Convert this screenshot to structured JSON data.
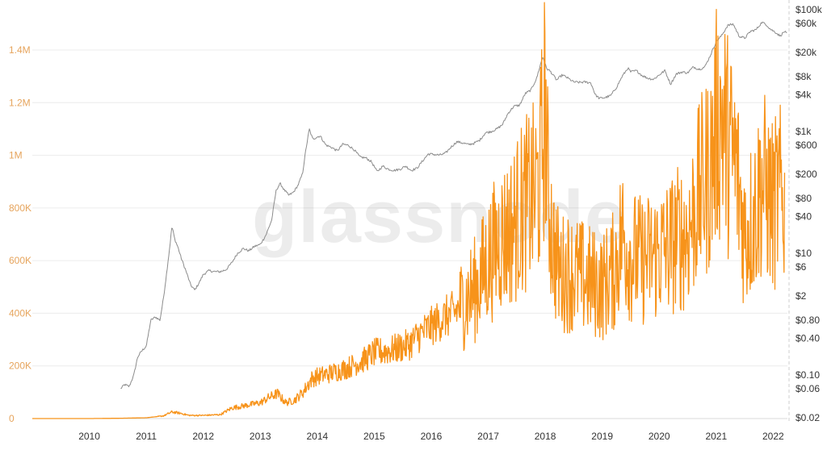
{
  "watermark": "glassnode",
  "chart_data": {
    "type": "line",
    "title": "",
    "xlabel": "",
    "ylabel": "",
    "xlim": [
      2009.0,
      2022.25
    ],
    "x_ticks": [
      "2010",
      "2011",
      "2012",
      "2013",
      "2014",
      "2015",
      "2016",
      "2017",
      "2018",
      "2019",
      "2020",
      "2021",
      "2022"
    ],
    "left_axis": {
      "scale": "linear",
      "ylim": [
        0,
        1500000
      ],
      "tick_labels": [
        "0",
        "200K",
        "400K",
        "600K",
        "800K",
        "1M",
        "1.2M",
        "1.4M"
      ],
      "tick_values": [
        0,
        200000,
        400000,
        600000,
        800000,
        1000000,
        1200000,
        1400000
      ]
    },
    "right_axis": {
      "scale": "log",
      "ylim": [
        0.015,
        120000
      ],
      "tick_labels": [
        "$0.02",
        "$0.06",
        "$0.10",
        "$0.40",
        "$0.80",
        "$2",
        "$6",
        "$10",
        "$40",
        "$80",
        "$200",
        "$600",
        "$1k",
        "$4k",
        "$8k",
        "$20k",
        "$60k",
        "$100k"
      ],
      "tick_values": [
        0.02,
        0.06,
        0.1,
        0.4,
        0.8,
        2,
        6,
        10,
        40,
        80,
        200,
        600,
        1000,
        4000,
        8000,
        20000,
        60000,
        100000
      ]
    },
    "grid": true,
    "legend": "none",
    "colors": {
      "series_orange": "#f7931a",
      "series_price": "#8c8c8c",
      "left_tick_text": "#e6a45c",
      "grid": "#ececec"
    },
    "series": [
      {
        "axis": "right",
        "color": "#8c8c8c",
        "x": [
          2010.55,
          2010.62,
          2010.7,
          2010.78,
          2010.85,
          2010.92,
          2011.0,
          2011.08,
          2011.16,
          2011.24,
          2011.3,
          2011.36,
          2011.42,
          2011.45,
          2011.5,
          2011.55,
          2011.62,
          2011.7,
          2011.78,
          2011.85,
          2011.92,
          2012.0,
          2012.1,
          2012.2,
          2012.3,
          2012.4,
          2012.5,
          2012.6,
          2012.7,
          2012.8,
          2012.9,
          2013.0,
          2013.1,
          2013.2,
          2013.28,
          2013.35,
          2013.42,
          2013.5,
          2013.58,
          2013.66,
          2013.74,
          2013.8,
          2013.86,
          2013.92,
          2013.98,
          2014.05,
          2014.15,
          2014.25,
          2014.35,
          2014.45,
          2014.55,
          2014.65,
          2014.75,
          2014.85,
          2014.95,
          2015.05,
          2015.15,
          2015.25,
          2015.35,
          2015.45,
          2015.55,
          2015.65,
          2015.75,
          2015.85,
          2015.95,
          2016.05,
          2016.15,
          2016.25,
          2016.35,
          2016.45,
          2016.55,
          2016.65,
          2016.75,
          2016.85,
          2016.95,
          2017.05,
          2017.15,
          2017.25,
          2017.35,
          2017.45,
          2017.55,
          2017.65,
          2017.75,
          2017.85,
          2017.92,
          2017.96,
          2018.02,
          2018.1,
          2018.2,
          2018.3,
          2018.4,
          2018.5,
          2018.6,
          2018.7,
          2018.8,
          2018.88,
          2018.95,
          2019.05,
          2019.15,
          2019.25,
          2019.35,
          2019.45,
          2019.5,
          2019.6,
          2019.7,
          2019.8,
          2019.9,
          2020.0,
          2020.1,
          2020.2,
          2020.3,
          2020.4,
          2020.5,
          2020.6,
          2020.7,
          2020.8,
          2020.9,
          2021.0,
          2021.1,
          2021.2,
          2021.3,
          2021.4,
          2021.5,
          2021.6,
          2021.7,
          2021.8,
          2021.88,
          2021.95,
          2022.05,
          2022.12,
          2022.2,
          2022.24
        ],
        "values": [
          0.06,
          0.07,
          0.065,
          0.1,
          0.2,
          0.25,
          0.3,
          0.8,
          0.9,
          0.8,
          1.8,
          5,
          15,
          28,
          17,
          13,
          8,
          5,
          3,
          2.5,
          3.2,
          4.5,
          5.2,
          5.0,
          5.0,
          5.4,
          7,
          10,
          12,
          11,
          13,
          14,
          20,
          35,
          110,
          140,
          110,
          90,
          100,
          130,
          200,
          500,
          1100,
          750,
          800,
          850,
          600,
          550,
          480,
          620,
          590,
          500,
          380,
          370,
          320,
          220,
          270,
          240,
          230,
          240,
          270,
          230,
          250,
          330,
          430,
          420,
          410,
          440,
          560,
          680,
          650,
          610,
          640,
          720,
          950,
          1000,
          1100,
          1300,
          2000,
          2600,
          2700,
          4200,
          4800,
          7500,
          13000,
          17000,
          11000,
          9500,
          7000,
          8500,
          7500,
          6500,
          6400,
          6500,
          6300,
          4000,
          3500,
          3600,
          3900,
          5300,
          8000,
          11000,
          9500,
          10000,
          8300,
          7500,
          7200,
          8500,
          10000,
          6000,
          8800,
          9500,
          9200,
          11500,
          10500,
          11500,
          18000,
          30000,
          38000,
          55000,
          58000,
          37000,
          34000,
          44000,
          47000,
          62000,
          57000,
          48000,
          42000,
          37000,
          44000,
          40000
        ]
      },
      {
        "axis": "left",
        "color": "#f7931a",
        "x": [
          2009.0,
          2010.0,
          2010.5,
          2011.0,
          2011.3,
          2011.45,
          2011.6,
          2011.75,
          2012.0,
          2012.3,
          2012.5,
          2012.75,
          2013.0,
          2013.15,
          2013.3,
          2013.45,
          2013.6,
          2013.75,
          2013.9,
          2014.0,
          2014.2,
          2014.5,
          2014.8,
          2015.0,
          2015.3,
          2015.6,
          2015.8,
          2016.0,
          2016.2,
          2016.4,
          2016.6,
          2016.8,
          2017.0,
          2017.2,
          2017.4,
          2017.6,
          2017.8,
          2017.9,
          2018.0,
          2018.05,
          2018.15,
          2018.25,
          2018.4,
          2018.6,
          2018.8,
          2019.0,
          2019.2,
          2019.35,
          2019.5,
          2019.7,
          2019.9,
          2020.1,
          2020.3,
          2020.5,
          2020.7,
          2020.9,
          2021.0,
          2021.1,
          2021.2,
          2021.35,
          2021.5,
          2021.6,
          2021.7,
          2021.8,
          2021.9,
          2022.0,
          2022.1,
          2022.2
        ],
        "values": [
          0,
          0,
          1000,
          3000,
          10000,
          25000,
          20000,
          12000,
          12000,
          15000,
          40000,
          50000,
          60000,
          80000,
          95000,
          60000,
          70000,
          100000,
          150000,
          160000,
          170000,
          190000,
          220000,
          250000,
          260000,
          280000,
          320000,
          350000,
          380000,
          400000,
          450000,
          500000,
          600000,
          680000,
          720000,
          800000,
          850000,
          900000,
          1200000,
          850000,
          650000,
          550000,
          560000,
          540000,
          520000,
          500000,
          560000,
          700000,
          620000,
          600000,
          620000,
          640000,
          680000,
          700000,
          850000,
          950000,
          1100000,
          1150000,
          1050000,
          950000,
          700000,
          750000,
          800000,
          900000,
          850000,
          800000,
          850000,
          820000
        ]
      }
    ]
  }
}
